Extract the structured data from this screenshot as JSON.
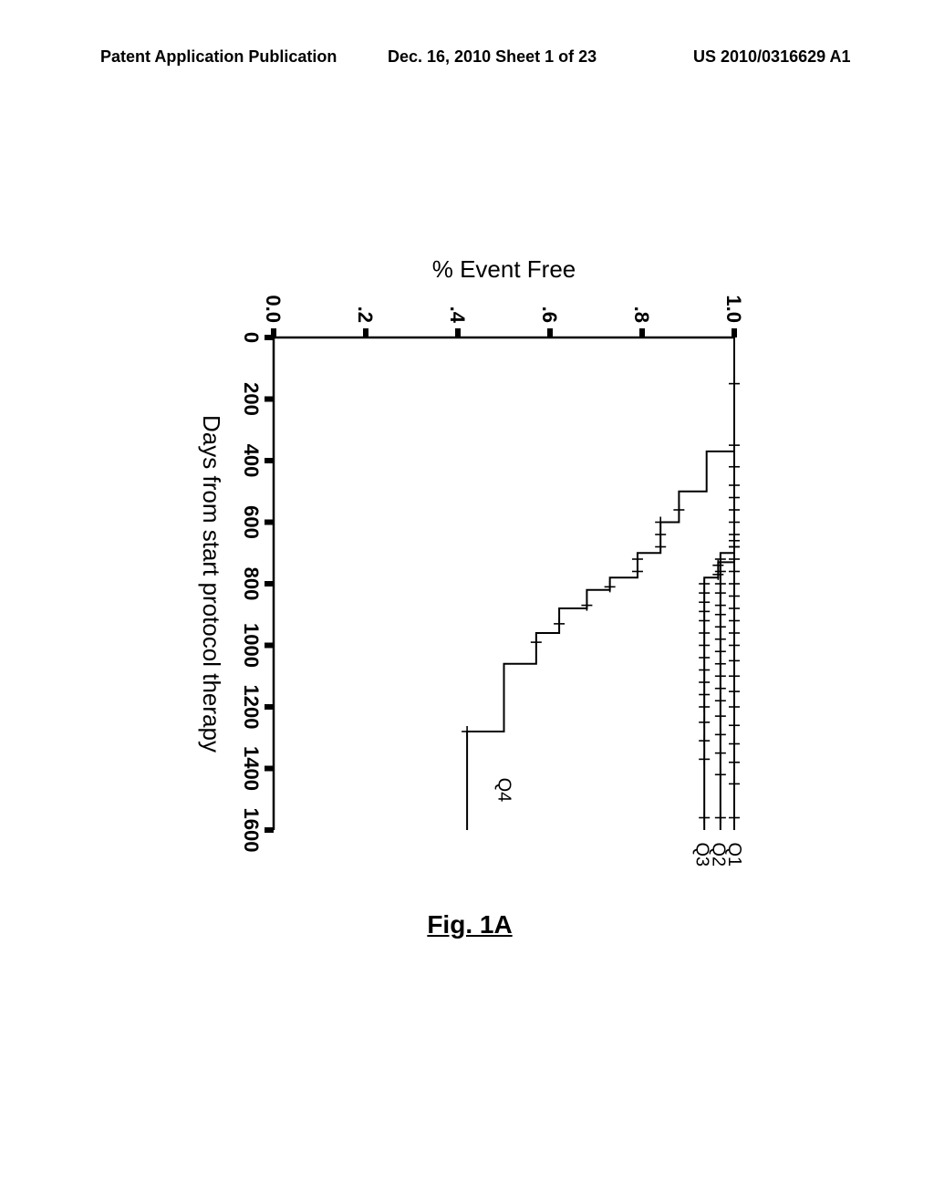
{
  "header": {
    "left": "Patent Application Publication",
    "center": "Dec. 16, 2010  Sheet 1 of 23",
    "right": "US 2010/0316629 A1"
  },
  "figure": {
    "caption": "Fig. 1A",
    "type": "kaplan-meier",
    "xlabel": "Days from start protocol therapy",
    "ylabel": "% Event Free",
    "xlim": [
      0,
      1600
    ],
    "ylim": [
      0.0,
      1.0
    ],
    "xticks": [
      0,
      200,
      400,
      600,
      800,
      1000,
      1200,
      1400,
      1600
    ],
    "yticks": [
      0.0,
      0.2,
      0.4,
      0.6,
      0.8,
      1.0
    ],
    "xtick_labels": [
      "0",
      "200",
      "400",
      "600",
      "800",
      "1000",
      "1200",
      "1400",
      "1600"
    ],
    "ytick_labels": [
      "0.0",
      ".2",
      ".4",
      ".6",
      ".8",
      "1.0"
    ],
    "axis_color": "#000000",
    "line_color": "#000000",
    "background_color": "#ffffff",
    "axis_width": 2.5,
    "line_width": 2.0,
    "tick_len": 8,
    "tick_fontsize": 22,
    "label_fontsize": 26,
    "censor_mark_size": 6,
    "series_labels": {
      "Q1": "Q1",
      "Q2": "Q2",
      "Q3": "Q3",
      "Q4": "Q4"
    },
    "series": {
      "Q1": {
        "steps": [
          [
            0,
            1.0
          ],
          [
            1600,
            1.0
          ]
        ],
        "censors": [
          150,
          350,
          420,
          480,
          520,
          560,
          600,
          640,
          660,
          680,
          720,
          760,
          800,
          840,
          880,
          920,
          960,
          1000,
          1050,
          1100,
          1150,
          1200,
          1260,
          1320,
          1380,
          1450,
          1560
        ]
      },
      "Q2": {
        "steps": [
          [
            0,
            1.0
          ],
          [
            700,
            1.0
          ],
          [
            700,
            0.97
          ],
          [
            1600,
            0.97
          ]
        ],
        "censors": [
          680,
          720,
          760,
          800,
          830,
          870,
          900,
          940,
          980,
          1020,
          1060,
          1100,
          1140,
          1180,
          1230,
          1290,
          1350,
          1420,
          1560
        ]
      },
      "Q3": {
        "steps": [
          [
            0,
            1.0
          ],
          [
            730,
            1.0
          ],
          [
            730,
            0.965
          ],
          [
            780,
            0.965
          ],
          [
            780,
            0.935
          ],
          [
            1600,
            0.935
          ]
        ],
        "censors": [
          740,
          770,
          800,
          830,
          860,
          890,
          920,
          960,
          1000,
          1040,
          1080,
          1120,
          1160,
          1200,
          1250,
          1310,
          1370,
          1560
        ]
      },
      "Q4": {
        "steps": [
          [
            0,
            1.0
          ],
          [
            370,
            1.0
          ],
          [
            370,
            0.94
          ],
          [
            500,
            0.94
          ],
          [
            500,
            0.88
          ],
          [
            600,
            0.88
          ],
          [
            600,
            0.84
          ],
          [
            700,
            0.84
          ],
          [
            700,
            0.79
          ],
          [
            780,
            0.79
          ],
          [
            780,
            0.73
          ],
          [
            820,
            0.73
          ],
          [
            820,
            0.68
          ],
          [
            880,
            0.68
          ],
          [
            880,
            0.62
          ],
          [
            960,
            0.62
          ],
          [
            960,
            0.57
          ],
          [
            1060,
            0.57
          ],
          [
            1060,
            0.5
          ],
          [
            1280,
            0.5
          ],
          [
            1280,
            0.42
          ],
          [
            1600,
            0.42
          ]
        ],
        "censors": [
          560,
          600,
          640,
          680,
          720,
          760,
          810,
          870,
          930,
          990,
          1280
        ]
      }
    },
    "series_label_positions": {
      "Q1": {
        "x": 1640,
        "y": 1.0
      },
      "Q2": {
        "x": 1640,
        "y": 0.965
      },
      "Q3": {
        "x": 1640,
        "y": 0.93
      },
      "Q4": {
        "x": 1430,
        "y": 0.5
      }
    }
  }
}
